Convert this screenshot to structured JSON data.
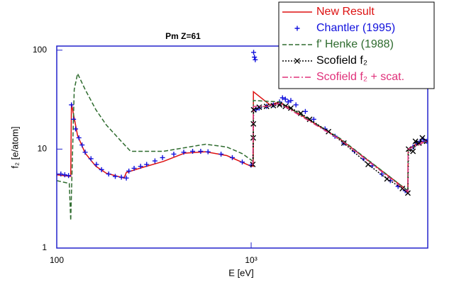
{
  "chart_data": {
    "type": "line",
    "title": "Pm Z=61",
    "x_label": "E [eV]",
    "y_label": "f₂ [e/atom]",
    "xscale": "log",
    "yscale": "log",
    "xlim": [
      100,
      8100
    ],
    "ylim": [
      1,
      110
    ],
    "xticks": [
      100,
      {
        "value": 1000,
        "label": "10³"
      }
    ],
    "yticks": [
      1,
      10,
      100
    ],
    "axis_color": "#2222cc",
    "legend": "top-right",
    "series": [
      {
        "name": "New Result",
        "color": "#dd1111",
        "line": "solid",
        "marker": "none",
        "x": [
          100,
          118,
          119,
          128,
          140,
          159,
          180,
          222,
          228,
          274,
          353,
          454,
          583,
          750,
          985,
          1025,
          1027,
          1250,
          1400,
          2870,
          6400,
          6420,
          7250,
          8100
        ],
        "values": [
          5.5,
          5.3,
          29,
          13.7,
          9.1,
          6.7,
          5.7,
          5.1,
          5.8,
          6.5,
          7.5,
          9.1,
          9.4,
          8.6,
          6.8,
          6.7,
          38,
          28,
          30,
          12.6,
          3.8,
          10,
          11.6,
          12.2
        ]
      },
      {
        "name": "Chantler (1995)",
        "color": "#1111dd",
        "line": "none",
        "marker": "plus",
        "x": [
          100,
          105,
          110,
          115,
          119,
          122,
          125,
          130,
          135,
          140,
          150,
          160,
          170,
          185,
          200,
          215,
          228,
          235,
          250,
          270,
          290,
          320,
          350,
          400,
          450,
          500,
          550,
          600,
          700,
          800,
          900,
          1000,
          1030,
          1040,
          1050,
          1060,
          1100,
          1200,
          1300,
          1400,
          1450,
          1500,
          1550,
          1600,
          1700,
          1900,
          2100,
          2400,
          2700,
          3000,
          3400,
          3800,
          4200,
          4700,
          5200,
          5700,
          6200,
          6350,
          6800,
          7100,
          7400,
          7700,
          8000
        ],
        "values": [
          5.6,
          5.6,
          5.5,
          5.4,
          28,
          20,
          16,
          13,
          11,
          9.3,
          8,
          7,
          6.2,
          5.6,
          5.3,
          5.2,
          5.1,
          6,
          6.4,
          6.7,
          7,
          7.6,
          8.2,
          8.9,
          9.3,
          9.5,
          9.5,
          9.4,
          8.9,
          8.2,
          7.4,
          6.9,
          95,
          85,
          80,
          25,
          26,
          27,
          28,
          30,
          33,
          32,
          30,
          31,
          28,
          24,
          20,
          16,
          13.5,
          11.5,
          9.5,
          8,
          6.8,
          5.6,
          4.8,
          4.2,
          3.8,
          3.7,
          10.5,
          11.5,
          12,
          12.5,
          12
        ]
      },
      {
        "name": "f' Henke (1988)",
        "color": "#2e6b2e",
        "line": "dashed",
        "marker": "none",
        "x": [
          100,
          116,
          118,
          123,
          128,
          140,
          159,
          180,
          218,
          240,
          353,
          583,
          750,
          900,
          1025,
          1027,
          1400,
          2870,
          6400,
          6420,
          8100
        ],
        "values": [
          4.8,
          4.5,
          1.9,
          40,
          58,
          40,
          25,
          17.5,
          11.6,
          9.5,
          9.5,
          11.2,
          10.5,
          9,
          7.5,
          31,
          30,
          12.8,
          3.8,
          10,
          12
        ]
      },
      {
        "name": "Scofield f₂",
        "color": "#000000",
        "line": "dotted",
        "marker": "x",
        "x": [
          1020,
          1025,
          1027,
          1030,
          1100,
          1200,
          1300,
          1400,
          1500,
          1600,
          1800,
          2000,
          2500,
          3000,
          4000,
          5000,
          6000,
          6400,
          6450,
          6800,
          7000,
          7300,
          7600,
          8000
        ],
        "values": [
          7,
          13,
          18,
          25,
          26.5,
          27,
          27.5,
          28,
          27,
          26,
          23,
          20,
          15,
          11.5,
          7,
          5,
          4,
          3.6,
          10,
          9.5,
          12,
          11.5,
          13,
          12
        ]
      },
      {
        "name": "Scofield f₂ + scat.",
        "color": "#e0307a",
        "line": "dashdot",
        "marker": "none",
        "x": [
          1020,
          1027,
          1200,
          1400,
          2870,
          6400,
          6420,
          8000
        ],
        "values": [
          6.9,
          27,
          27,
          29,
          12.5,
          3.7,
          10,
          12
        ]
      }
    ]
  }
}
